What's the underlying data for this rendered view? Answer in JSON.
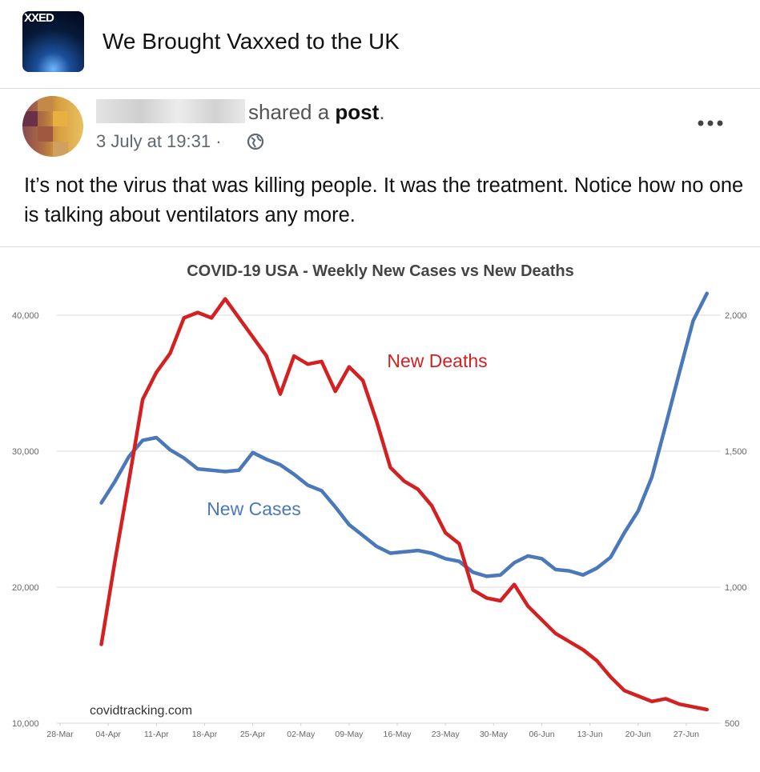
{
  "header": {
    "logo_text": "XXED",
    "group_name": "We Brought Vaxxed to the UK"
  },
  "post": {
    "shared_text": "shared a",
    "post_word": "post",
    "punct": ".",
    "timestamp": "3 July at 19:31 · ",
    "text": "It’s not the virus that was killing people. It was the treatment. Notice how no one is talking about ventilators any more."
  },
  "chart_data": {
    "type": "line",
    "title": "COVID-19 USA - Weekly New Cases vs New Deaths",
    "x": [
      6,
      8,
      10,
      12,
      14,
      16,
      18,
      20,
      22,
      24,
      26,
      28,
      30,
      32,
      34,
      36,
      38,
      40,
      42,
      44,
      46,
      48,
      50,
      52,
      54,
      56,
      58,
      60,
      62,
      64,
      66,
      68,
      70,
      72,
      74,
      76,
      78,
      80,
      82,
      84,
      86,
      88,
      90,
      92,
      94
    ],
    "xlim": [
      -0.5,
      95.5
    ],
    "xticks": [
      {
        "value": 0,
        "label": "28-Mar"
      },
      {
        "value": 7,
        "label": "04-Apr"
      },
      {
        "value": 14,
        "label": "11-Apr"
      },
      {
        "value": 21,
        "label": "18-Apr"
      },
      {
        "value": 28,
        "label": "25-Apr"
      },
      {
        "value": 35,
        "label": "02-May"
      },
      {
        "value": 42,
        "label": "09-May"
      },
      {
        "value": 49,
        "label": "16-May"
      },
      {
        "value": 56,
        "label": "23-May"
      },
      {
        "value": 63,
        "label": "30-May"
      },
      {
        "value": 70,
        "label": "06-Jun"
      },
      {
        "value": 77,
        "label": "13-Jun"
      },
      {
        "value": 84,
        "label": "20-Jun"
      },
      {
        "value": 91,
        "label": "27-Jun"
      }
    ],
    "ylim": [
      10000,
      40000
    ],
    "yticks": [
      {
        "value": 10000,
        "label": "10,000"
      },
      {
        "value": 20000,
        "label": "20,000"
      },
      {
        "value": 30000,
        "label": "30,000"
      },
      {
        "value": 40000,
        "label": "40,000"
      }
    ],
    "y2lim": [
      500,
      2000
    ],
    "y2ticks": [
      500,
      {
        "value": 1000,
        "label": "1,000"
      },
      {
        "value": 1500,
        "label": "1,500"
      },
      {
        "value": 2000,
        "label": "2,000"
      }
    ],
    "grid": true,
    "series": [
      {
        "name": "New Cases",
        "color": "#4a78b8",
        "values": [
          26200,
          27800,
          29600,
          30800,
          31000,
          30100,
          29500,
          28700,
          28600,
          28500,
          28600,
          29900,
          29400,
          29000,
          28300,
          27500,
          27100,
          25900,
          24600,
          23800,
          23000,
          22500,
          22600,
          22700,
          22500,
          22100,
          21900,
          21100,
          20800,
          20900,
          21800,
          22300,
          22100,
          21300,
          21200,
          20900,
          21400,
          22200,
          24000,
          25600,
          28100,
          31900,
          35800,
          39600,
          41600
        ]
      },
      {
        "name": "New Deaths",
        "color": "#d42020",
        "axis": "y2",
        "values": [
          790,
          1100,
          1390,
          1690,
          1790,
          1860,
          1990,
          2010,
          1990,
          2060,
          1990,
          1920,
          1850,
          1710,
          1850,
          1820,
          1830,
          1720,
          1810,
          1760,
          1610,
          1440,
          1390,
          1360,
          1300,
          1200,
          1160,
          990,
          960,
          950,
          1010,
          930,
          880,
          830,
          800,
          770,
          730,
          670,
          620,
          600,
          580,
          590,
          570,
          560,
          550
        ]
      }
    ],
    "source": "covidtracking.com"
  }
}
